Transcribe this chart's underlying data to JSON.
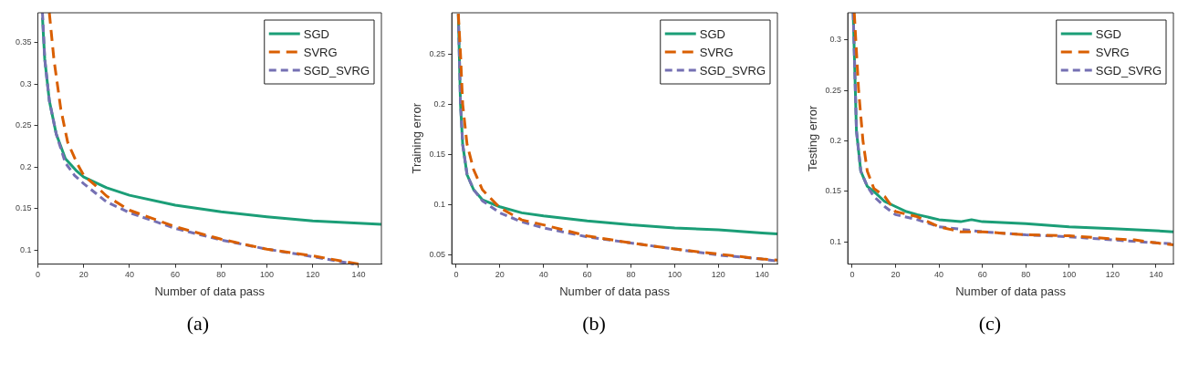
{
  "chart_data": [
    {
      "type": "line",
      "xlabel": "Number of data pass",
      "xlim": [
        0,
        150
      ],
      "xticks": [
        0,
        20,
        40,
        60,
        80,
        100,
        120,
        140
      ],
      "ylim": [
        0.083,
        0.386
      ],
      "yticks": [
        0.1,
        0.15,
        0.2,
        0.25,
        0.3,
        0.35
      ],
      "legend": "top right",
      "annotations": [
        "(a)"
      ],
      "series": [
        {
          "name": "SGD",
          "color": "#1b9e77",
          "line_style": "solid",
          "x": [
            2,
            3,
            5,
            8,
            12,
            17,
            20,
            30,
            40,
            60,
            80,
            100,
            120,
            150
          ],
          "values": [
            0.38,
            0.33,
            0.28,
            0.24,
            0.21,
            0.195,
            0.188,
            0.175,
            0.166,
            0.154,
            0.146,
            0.14,
            0.135,
            0.131
          ]
        },
        {
          "name": "SVRG",
          "color": "#d95f02",
          "line_style": "dashed",
          "x": [
            5,
            7,
            10,
            13,
            17,
            20,
            25,
            30,
            40,
            60,
            80,
            100,
            120,
            140
          ],
          "values": [
            0.386,
            0.33,
            0.27,
            0.23,
            0.205,
            0.19,
            0.178,
            0.165,
            0.148,
            0.128,
            0.113,
            0.101,
            0.093,
            0.083
          ]
        },
        {
          "name": "SGD_SVRG",
          "color": "#7570b3",
          "line_style": "dashed",
          "x": [
            2,
            3,
            5,
            8,
            12,
            16,
            20,
            30,
            40,
            60,
            80,
            100,
            120,
            138
          ],
          "values": [
            0.386,
            0.33,
            0.28,
            0.24,
            0.205,
            0.19,
            0.18,
            0.158,
            0.145,
            0.126,
            0.112,
            0.101,
            0.092,
            0.083
          ]
        }
      ]
    },
    {
      "type": "line",
      "xlabel": "Number of data pass",
      "ylabel": "Training error",
      "xlim": [
        -2,
        147
      ],
      "xticks": [
        0,
        20,
        40,
        60,
        80,
        100,
        120,
        140
      ],
      "ylim": [
        0.041,
        0.291
      ],
      "yticks": [
        0.05,
        0.1,
        0.15,
        0.2,
        0.25
      ],
      "legend": "top right",
      "annotations": [
        "(b)"
      ],
      "series": [
        {
          "name": "SGD",
          "color": "#1b9e77",
          "line_style": "solid",
          "x": [
            1,
            2,
            3,
            5,
            8,
            12,
            20,
            30,
            40,
            60,
            80,
            100,
            120,
            140,
            147
          ],
          "values": [
            0.29,
            0.2,
            0.16,
            0.13,
            0.115,
            0.105,
            0.098,
            0.092,
            0.089,
            0.084,
            0.08,
            0.077,
            0.075,
            0.072,
            0.071
          ]
        },
        {
          "name": "SVRG",
          "color": "#d95f02",
          "line_style": "dashed",
          "x": [
            1,
            2,
            3,
            5,
            8,
            12,
            20,
            30,
            40,
            60,
            80,
            100,
            120,
            140,
            147
          ],
          "values": [
            0.29,
            0.25,
            0.2,
            0.16,
            0.135,
            0.115,
            0.097,
            0.085,
            0.08,
            0.069,
            0.062,
            0.056,
            0.051,
            0.046,
            0.045
          ]
        },
        {
          "name": "SGD_SVRG",
          "color": "#7570b3",
          "line_style": "dashed",
          "x": [
            1,
            2,
            3,
            5,
            8,
            12,
            20,
            30,
            40,
            60,
            80,
            100,
            120,
            140,
            147
          ],
          "values": [
            0.29,
            0.2,
            0.16,
            0.13,
            0.115,
            0.104,
            0.092,
            0.083,
            0.077,
            0.068,
            0.062,
            0.056,
            0.05,
            0.046,
            0.044
          ]
        }
      ]
    },
    {
      "type": "line",
      "xlabel": "Number of data pass",
      "ylabel": "Testing error",
      "xlim": [
        -2,
        148
      ],
      "xticks": [
        0,
        20,
        40,
        60,
        80,
        100,
        120,
        140
      ],
      "ylim": [
        0.078,
        0.327
      ],
      "yticks": [
        0.1,
        0.15,
        0.2,
        0.25,
        0.3
      ],
      "legend": "top right",
      "annotations": [
        "(c)"
      ],
      "series": [
        {
          "name": "SGD",
          "color": "#1b9e77",
          "line_style": "solid",
          "x": [
            0.5,
            2,
            4,
            7,
            10,
            15,
            20,
            25,
            30,
            40,
            50,
            55,
            60,
            80,
            100,
            120,
            140,
            148
          ],
          "values": [
            0.327,
            0.21,
            0.17,
            0.155,
            0.15,
            0.14,
            0.135,
            0.13,
            0.127,
            0.122,
            0.12,
            0.122,
            0.12,
            0.118,
            0.115,
            0.113,
            0.111,
            0.11
          ]
        },
        {
          "name": "SVRG",
          "color": "#d95f02",
          "line_style": "dashed",
          "x": [
            1,
            3,
            5,
            7,
            10,
            15,
            20,
            30,
            40,
            50,
            60,
            80,
            100,
            120,
            130,
            140,
            148
          ],
          "values": [
            0.327,
            0.25,
            0.2,
            0.17,
            0.153,
            0.145,
            0.13,
            0.125,
            0.115,
            0.11,
            0.11,
            0.107,
            0.106,
            0.103,
            0.102,
            0.099,
            0.097
          ]
        },
        {
          "name": "SGD_SVRG",
          "color": "#7570b3",
          "line_style": "dashed",
          "x": [
            0.5,
            2,
            4,
            7,
            10,
            15,
            20,
            30,
            40,
            60,
            80,
            100,
            120,
            140,
            148
          ],
          "values": [
            0.327,
            0.21,
            0.17,
            0.155,
            0.145,
            0.135,
            0.127,
            0.122,
            0.115,
            0.11,
            0.107,
            0.105,
            0.102,
            0.099,
            0.098
          ]
        }
      ]
    }
  ]
}
